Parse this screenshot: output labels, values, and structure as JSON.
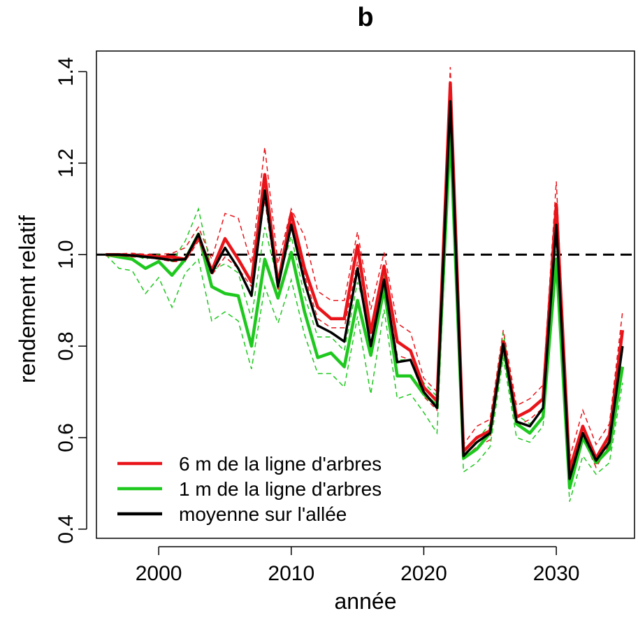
{
  "chart_data": {
    "type": "line",
    "title": "b",
    "xlabel": "année",
    "ylabel": "rendement relatif",
    "xlim": [
      1995.3,
      2035.9
    ],
    "ylim": [
      0.38,
      1.445
    ],
    "x_ticks": [
      2000,
      2010,
      2020,
      2030
    ],
    "y_ticks": [
      0.4,
      0.6,
      0.8,
      1.0,
      1.2,
      1.4
    ],
    "x_tick_labels": [
      "2000",
      "2010",
      "2020",
      "2030"
    ],
    "y_tick_labels": [
      "0.4",
      "0.6",
      "0.8",
      "1.0",
      "1.2",
      "1.4"
    ],
    "reference_line": 1.0,
    "grid": false,
    "legend_position": "bottom-left",
    "x": [
      1996,
      1997,
      1998,
      1999,
      2000,
      2001,
      2002,
      2003,
      2004,
      2005,
      2006,
      2007,
      2008,
      2009,
      2010,
      2011,
      2012,
      2013,
      2014,
      2015,
      2016,
      2017,
      2018,
      2019,
      2020,
      2021,
      2022,
      2023,
      2024,
      2025,
      2026,
      2027,
      2028,
      2029,
      2030,
      2031,
      2032,
      2033,
      2034,
      2035
    ],
    "series": [
      {
        "name": "6 m de la ligne d'arbres",
        "color": "#e8141a",
        "values": [
          1.0,
          1.0,
          0.998,
          0.997,
          0.995,
          0.995,
          0.99,
          1.04,
          0.965,
          1.035,
          0.99,
          0.94,
          1.175,
          0.935,
          1.09,
          0.97,
          0.885,
          0.86,
          0.86,
          1.02,
          0.83,
          0.975,
          0.81,
          0.79,
          0.71,
          0.68,
          1.375,
          0.57,
          0.6,
          0.615,
          0.81,
          0.645,
          0.66,
          0.685,
          1.11,
          0.53,
          0.625,
          0.555,
          0.605,
          0.835
        ],
        "upper": [
          1.0,
          1.002,
          1.003,
          1.001,
          1.0,
          1.003,
          1.015,
          1.06,
          0.99,
          1.09,
          1.08,
          0.98,
          1.235,
          0.98,
          1.1,
          1.04,
          0.92,
          0.9,
          0.9,
          1.05,
          0.88,
          1.005,
          0.85,
          0.83,
          0.73,
          0.7,
          1.41,
          0.585,
          0.625,
          0.64,
          0.835,
          0.67,
          0.685,
          0.715,
          1.16,
          0.555,
          0.66,
          0.585,
          0.63,
          0.875
        ],
        "lower": [
          1.0,
          0.998,
          0.995,
          0.994,
          0.99,
          0.985,
          0.985,
          1.03,
          0.955,
          0.995,
          0.97,
          0.93,
          1.12,
          0.92,
          1.07,
          0.955,
          0.86,
          0.84,
          0.84,
          0.985,
          0.8,
          0.95,
          0.78,
          0.77,
          0.69,
          0.66,
          1.345,
          0.555,
          0.58,
          0.595,
          0.795,
          0.625,
          0.64,
          0.665,
          1.065,
          0.505,
          0.6,
          0.535,
          0.585,
          0.8
        ]
      },
      {
        "name": "1 m de la ligne d'arbres",
        "color": "#1ec81e",
        "values": [
          1.0,
          0.995,
          0.99,
          0.97,
          0.985,
          0.955,
          0.99,
          1.045,
          0.93,
          0.915,
          0.91,
          0.8,
          0.99,
          0.905,
          1.005,
          0.875,
          0.775,
          0.785,
          0.755,
          0.9,
          0.78,
          0.925,
          0.735,
          0.735,
          0.695,
          0.67,
          1.27,
          0.555,
          0.575,
          0.61,
          0.8,
          0.63,
          0.61,
          0.645,
          0.99,
          0.49,
          0.6,
          0.545,
          0.575,
          0.755
        ],
        "upper": [
          1.0,
          1.0,
          1.0,
          0.99,
          1.0,
          0.985,
          1.03,
          1.1,
          0.965,
          0.98,
          0.96,
          0.86,
          1.06,
          0.94,
          1.04,
          0.91,
          0.82,
          0.82,
          0.79,
          0.94,
          0.84,
          0.955,
          0.77,
          0.77,
          0.72,
          0.69,
          1.3,
          0.57,
          0.595,
          0.63,
          0.83,
          0.65,
          0.63,
          0.66,
          1.03,
          0.51,
          0.62,
          0.56,
          0.595,
          0.79
        ],
        "lower": [
          1.0,
          0.97,
          0.965,
          0.915,
          0.95,
          0.885,
          0.96,
          0.99,
          0.855,
          0.875,
          0.855,
          0.75,
          0.93,
          0.85,
          0.945,
          0.825,
          0.74,
          0.74,
          0.71,
          0.865,
          0.695,
          0.88,
          0.685,
          0.695,
          0.655,
          0.61,
          1.235,
          0.525,
          0.545,
          0.58,
          0.775,
          0.6,
          0.59,
          0.625,
          0.965,
          0.46,
          0.56,
          0.52,
          0.545,
          0.72
        ]
      },
      {
        "name": "moyenne sur l'allée",
        "color": "#000000",
        "values": [
          1.0,
          1.0,
          0.998,
          0.995,
          0.992,
          0.988,
          0.99,
          1.045,
          0.96,
          1.015,
          0.97,
          0.91,
          1.14,
          0.93,
          1.065,
          0.94,
          0.845,
          0.83,
          0.81,
          0.97,
          0.8,
          0.945,
          0.765,
          0.77,
          0.7,
          0.665,
          1.335,
          0.56,
          0.59,
          0.61,
          0.805,
          0.635,
          0.625,
          0.665,
          1.065,
          0.51,
          0.61,
          0.55,
          0.59,
          0.8
        ]
      }
    ]
  }
}
